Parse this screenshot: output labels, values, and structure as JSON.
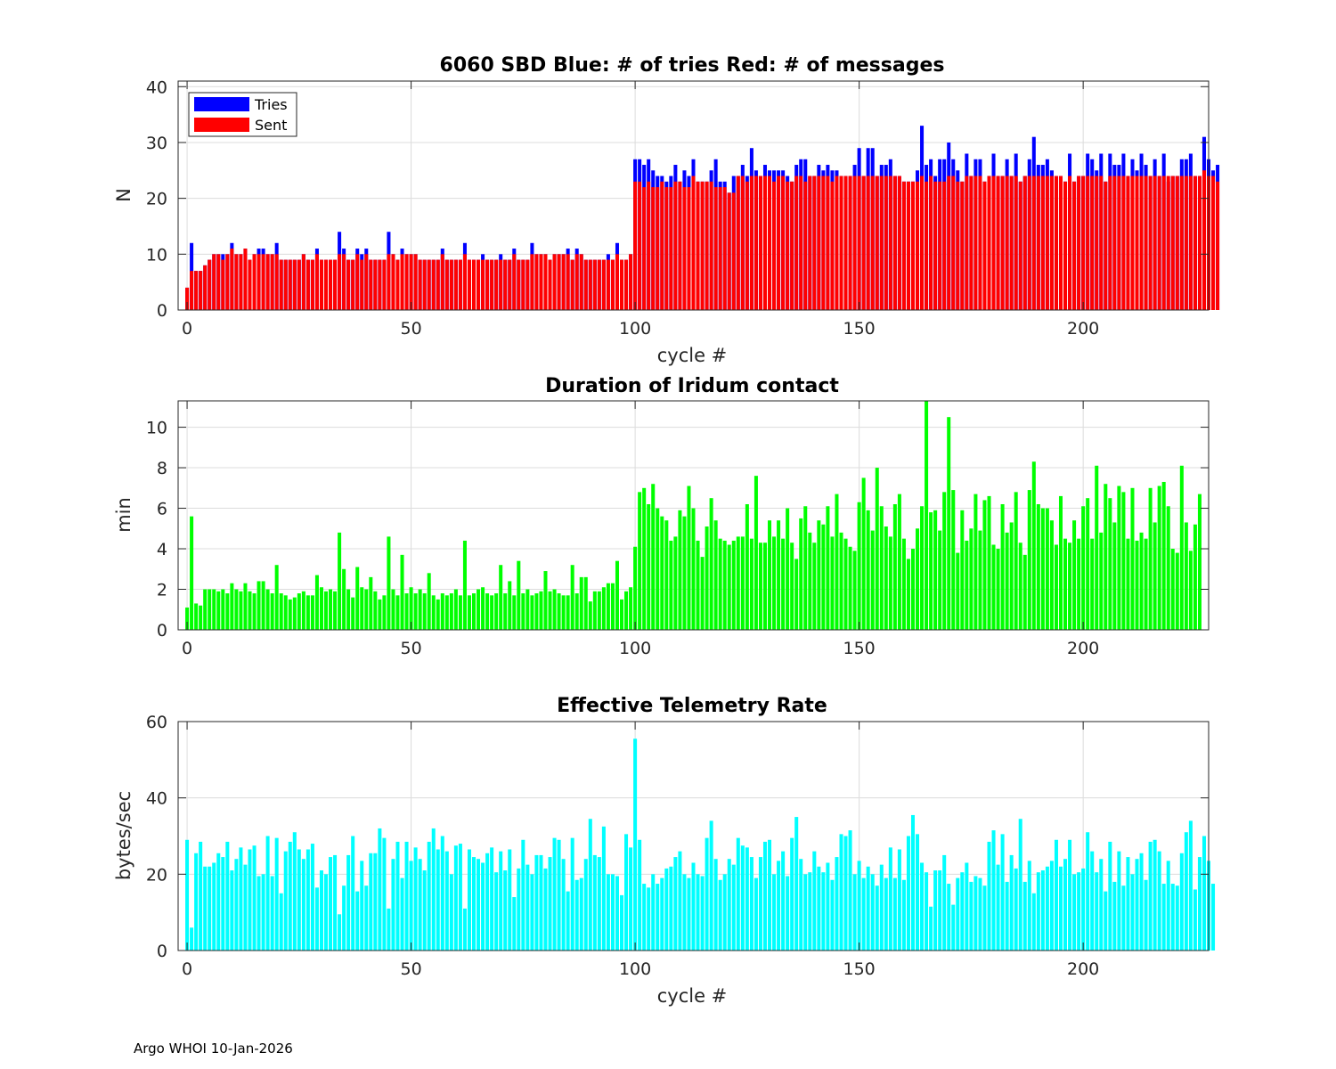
{
  "footer": "Argo WHOI 10-Jan-2026",
  "colors": {
    "tries": "#0000ff",
    "sent": "#ff0000",
    "duration": "#00ff00",
    "rate": "#00ffff",
    "grid": "#dcdcdc",
    "axis": "#262626"
  },
  "chart_data": [
    {
      "type": "bar",
      "title": "6060 SBD  Blue: # of tries   Red: # of messages",
      "xlabel": "cycle #",
      "ylabel": "N",
      "xlim": [
        -2,
        228
      ],
      "ylim": [
        0,
        41
      ],
      "xticks": [
        0,
        50,
        100,
        150,
        200
      ],
      "yticks": [
        0,
        10,
        20,
        30,
        40
      ],
      "grid": true,
      "legend": {
        "placement": "top-left",
        "entries": [
          "Tries",
          "Sent"
        ]
      },
      "x_start": 0,
      "series": [
        {
          "name": "Tries",
          "values": [
            4,
            12,
            7,
            7,
            8,
            9,
            10,
            10,
            10,
            10,
            12,
            10,
            10,
            11,
            9,
            10,
            11,
            11,
            10,
            10,
            12,
            9,
            9,
            9,
            9,
            9,
            10,
            9,
            9,
            11,
            9,
            9,
            9,
            9,
            14,
            11,
            9,
            9,
            11,
            10,
            11,
            9,
            9,
            9,
            9,
            14,
            10,
            9,
            11,
            10,
            10,
            10,
            9,
            9,
            9,
            9,
            9,
            11,
            9,
            9,
            9,
            9,
            12,
            9,
            9,
            9,
            10,
            9,
            9,
            9,
            10,
            9,
            9,
            11,
            9,
            9,
            9,
            12,
            10,
            10,
            10,
            9,
            10,
            10,
            10,
            11,
            9,
            11,
            10,
            9,
            9,
            9,
            9,
            9,
            10,
            9,
            12,
            9,
            9,
            10,
            27,
            27,
            26,
            27,
            25,
            24,
            24,
            23,
            24,
            26,
            23,
            25,
            24,
            27,
            23,
            23,
            23,
            25,
            27,
            23,
            23,
            21,
            24,
            24,
            26,
            24,
            29,
            25,
            24,
            26,
            25,
            25,
            25,
            25,
            24,
            23,
            26,
            27,
            27,
            24,
            24,
            26,
            25,
            26,
            25,
            25,
            24,
            24,
            24,
            26,
            29,
            24,
            29,
            29,
            24,
            26,
            26,
            27,
            24,
            24,
            23,
            23,
            23,
            25,
            33,
            26,
            27,
            24,
            27,
            27,
            30,
            27,
            25,
            23,
            28,
            24,
            27,
            27,
            23,
            24,
            28,
            24,
            24,
            27,
            24,
            28,
            23,
            24,
            27,
            31,
            26,
            26,
            27,
            25,
            24,
            24,
            23,
            28,
            23,
            24,
            24,
            28,
            27,
            25,
            28,
            23,
            28,
            26,
            26,
            28,
            24,
            27,
            25,
            28,
            26,
            24,
            27,
            24,
            28,
            23,
            24,
            24,
            27,
            27,
            28,
            24,
            24,
            31,
            27,
            25,
            26
          ],
          "color": "#0000ff"
        },
        {
          "name": "Sent",
          "values": [
            4,
            7,
            7,
            7,
            8,
            9,
            10,
            10,
            9,
            10,
            11,
            10,
            10,
            11,
            9,
            10,
            10,
            10,
            10,
            10,
            10,
            9,
            9,
            9,
            9,
            9,
            10,
            9,
            9,
            10,
            9,
            9,
            9,
            9,
            10,
            10,
            9,
            9,
            10,
            9,
            10,
            9,
            9,
            9,
            9,
            10,
            10,
            9,
            10,
            10,
            10,
            10,
            9,
            9,
            9,
            9,
            9,
            10,
            9,
            9,
            9,
            9,
            10,
            9,
            9,
            9,
            9,
            9,
            9,
            9,
            9,
            9,
            9,
            10,
            9,
            9,
            9,
            10,
            10,
            10,
            10,
            9,
            10,
            10,
            10,
            10,
            9,
            10,
            10,
            9,
            9,
            9,
            9,
            9,
            9,
            9,
            10,
            9,
            9,
            10,
            23,
            23,
            22,
            23,
            22,
            22,
            23,
            22,
            22,
            23,
            23,
            22,
            22,
            24,
            23,
            23,
            23,
            23,
            22,
            22,
            22,
            21,
            21,
            24,
            24,
            23,
            24,
            24,
            24,
            24,
            24,
            23,
            24,
            24,
            23,
            23,
            24,
            24,
            23,
            24,
            24,
            24,
            24,
            24,
            23,
            24,
            24,
            24,
            24,
            24,
            24,
            24,
            24,
            24,
            24,
            24,
            24,
            24,
            24,
            24,
            23,
            23,
            23,
            23,
            24,
            23,
            24,
            23,
            23,
            23,
            24,
            24,
            23,
            23,
            24,
            24,
            24,
            24,
            23,
            24,
            24,
            24,
            24,
            24,
            24,
            24,
            23,
            24,
            24,
            24,
            24,
            24,
            24,
            24,
            24,
            24,
            23,
            24,
            23,
            24,
            24,
            24,
            24,
            24,
            24,
            23,
            24,
            24,
            24,
            24,
            24,
            24,
            24,
            24,
            24,
            24,
            24,
            24,
            24,
            24,
            24,
            24,
            24,
            24,
            24,
            24,
            24,
            25,
            24,
            24,
            23
          ],
          "color": "#ff0000"
        }
      ]
    },
    {
      "type": "bar",
      "title": "Duration of Iridum contact",
      "xlabel": "",
      "ylabel": "min",
      "xlim": [
        -2,
        228
      ],
      "ylim": [
        0,
        11.3
      ],
      "xticks": [
        0,
        50,
        100,
        150,
        200
      ],
      "yticks": [
        0,
        2,
        4,
        6,
        8,
        10
      ],
      "grid": true,
      "x_start": 0,
      "series": [
        {
          "values": [
            1.1,
            5.6,
            1.3,
            1.2,
            2.0,
            2.0,
            2.0,
            1.9,
            2.0,
            1.8,
            2.3,
            2.0,
            1.9,
            2.3,
            1.9,
            1.8,
            2.4,
            2.4,
            2.0,
            1.8,
            3.2,
            1.8,
            1.7,
            1.5,
            1.6,
            1.8,
            1.9,
            1.7,
            1.7,
            2.7,
            2.1,
            1.9,
            2.0,
            1.9,
            4.8,
            3.0,
            2.0,
            1.6,
            3.1,
            2.1,
            2.0,
            2.6,
            1.9,
            1.5,
            1.7,
            4.6,
            2.0,
            1.7,
            3.7,
            1.8,
            2.1,
            1.8,
            2.0,
            1.8,
            2.8,
            1.7,
            1.5,
            1.8,
            1.7,
            1.8,
            2.0,
            1.7,
            4.4,
            1.7,
            1.8,
            2.0,
            2.1,
            1.8,
            1.7,
            1.8,
            3.2,
            1.8,
            2.4,
            1.7,
            3.4,
            1.8,
            2.0,
            1.7,
            1.8,
            1.9,
            2.9,
            1.9,
            2.0,
            1.8,
            1.7,
            1.7,
            3.2,
            1.8,
            2.6,
            2.6,
            1.4,
            1.9,
            1.9,
            2.1,
            2.3,
            2.3,
            3.4,
            1.5,
            1.9,
            2.1,
            4.1,
            6.8,
            7.0,
            6.2,
            7.2,
            6.0,
            5.6,
            5.4,
            4.4,
            4.6,
            5.9,
            5.6,
            7.1,
            6.0,
            4.4,
            3.6,
            5.1,
            6.5,
            5.4,
            4.5,
            4.4,
            4.2,
            4.4,
            4.6,
            4.6,
            6.2,
            4.5,
            7.6,
            4.3,
            4.3,
            5.4,
            4.6,
            5.4,
            4.5,
            6.0,
            4.3,
            3.5,
            5.5,
            6.1,
            4.8,
            4.3,
            5.4,
            5.2,
            6.1,
            4.6,
            6.7,
            4.8,
            4.5,
            4.1,
            3.9,
            6.3,
            7.5,
            5.9,
            4.9,
            8.0,
            6.1,
            5.1,
            4.6,
            6.2,
            6.7,
            4.5,
            3.5,
            4.0,
            5.0,
            6.1,
            11.3,
            5.8,
            5.9,
            4.9,
            6.8,
            10.5,
            6.9,
            3.8,
            5.9,
            4.4,
            5.0,
            6.7,
            4.9,
            6.4,
            6.6,
            4.2,
            4.0,
            6.2,
            4.8,
            5.3,
            6.8,
            4.3,
            3.7,
            6.9,
            8.3,
            6.2,
            6.0,
            6.0,
            5.4,
            4.2,
            6.6,
            4.5,
            4.3,
            5.4,
            4.5,
            6.1,
            6.5,
            4.5,
            8.1,
            4.8,
            7.2,
            6.5,
            5.3,
            7.1,
            6.8,
            4.5,
            7.0,
            4.4,
            4.8,
            4.5,
            7.0,
            5.3,
            7.1,
            7.3,
            6.1,
            4.0,
            3.8,
            8.1,
            5.3,
            3.9,
            5.2,
            6.7
          ],
          "color": "#00ff00"
        }
      ]
    },
    {
      "type": "bar",
      "title": "Effective Telemetry Rate",
      "xlabel": "cycle #",
      "ylabel": "bytes/sec",
      "xlim": [
        -2,
        228
      ],
      "ylim": [
        0,
        60
      ],
      "xticks": [
        0,
        50,
        100,
        150,
        200
      ],
      "yticks": [
        0,
        20,
        40,
        60
      ],
      "grid": true,
      "x_start": 0,
      "series": [
        {
          "values": [
            29,
            6,
            25.5,
            28.5,
            22,
            22,
            23,
            25.5,
            24.5,
            28.5,
            21,
            24,
            27,
            22.5,
            26.5,
            27.5,
            19.5,
            20,
            30,
            19.5,
            29.5,
            15,
            26,
            28.5,
            31,
            26.5,
            24,
            26.5,
            28,
            16.5,
            21,
            20,
            24.5,
            25,
            9.5,
            17,
            25,
            30,
            15.5,
            23.5,
            17,
            25.5,
            25.5,
            32,
            29.5,
            11,
            24,
            28.5,
            19,
            28.5,
            23.5,
            27,
            24,
            21,
            28.5,
            32,
            26.5,
            30,
            26,
            20,
            27.5,
            28,
            11,
            26.5,
            24.5,
            24,
            23,
            25.5,
            27,
            20.5,
            26,
            21,
            26.5,
            14,
            21.5,
            29,
            22.5,
            20,
            25,
            25,
            21.5,
            24.5,
            29.5,
            29,
            24,
            15.5,
            29.5,
            18.5,
            19,
            24,
            34.5,
            25,
            24.5,
            32.5,
            20,
            20,
            19.5,
            14.5,
            30.5,
            27,
            55.5,
            29,
            17.5,
            16.5,
            20,
            17.5,
            19,
            21.5,
            22,
            24.5,
            26,
            20,
            19,
            23,
            20,
            19.5,
            29.5,
            34,
            24,
            18.5,
            20,
            24,
            22.5,
            29.5,
            27.5,
            27,
            24.5,
            19,
            24.5,
            28.5,
            29,
            20,
            23.5,
            26,
            19.5,
            29.5,
            35,
            24,
            20,
            20.5,
            26,
            22,
            20.5,
            23,
            18.5,
            24.5,
            30.5,
            30,
            31.5,
            20,
            23.5,
            19,
            22,
            20,
            17,
            22.5,
            19,
            27,
            19,
            26.5,
            18.5,
            30,
            35.5,
            30.5,
            23,
            20.5,
            11.5,
            21,
            21,
            25,
            17.5,
            12,
            19,
            20.5,
            23,
            18,
            19.5,
            19,
            17,
            28.5,
            31.5,
            22.5,
            30.5,
            18,
            25,
            21.5,
            34.5,
            18,
            23.5,
            15,
            20.5,
            21,
            22,
            23.5,
            29,
            22,
            24,
            29,
            20,
            20.5,
            21.5,
            31,
            26,
            20.5,
            24,
            15.5,
            28.5,
            18,
            26,
            17,
            24.5,
            20,
            24,
            25.5,
            18.5,
            28.5,
            29,
            26,
            17.5,
            23.5,
            17.5,
            17,
            25.5,
            31,
            34,
            16,
            24.5,
            30,
            23.5,
            17.5
          ],
          "color": "#00ffff"
        }
      ]
    }
  ]
}
